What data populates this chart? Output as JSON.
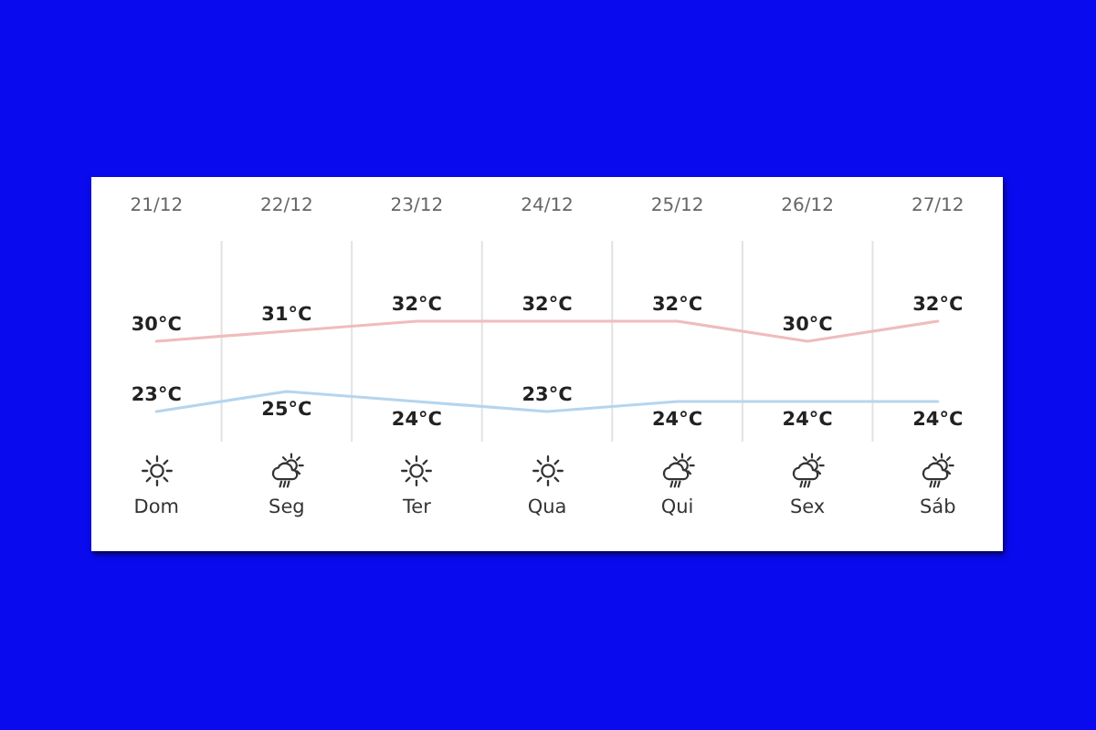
{
  "chart_data": {
    "type": "line",
    "categories": [
      "21/12",
      "22/12",
      "23/12",
      "24/12",
      "25/12",
      "26/12",
      "27/12"
    ],
    "series": [
      {
        "color": "#f0bcbc",
        "values": [
          30,
          31,
          32,
          32,
          32,
          30,
          32
        ],
        "value_labels": [
          "30°C",
          "31°C",
          "32°C",
          "32°C",
          "32°C",
          "30°C",
          "32°C"
        ]
      },
      {
        "color": "#b5d5ee",
        "values": [
          23,
          25,
          24,
          23,
          24,
          24,
          24
        ],
        "value_labels": [
          "23°C",
          "25°C",
          "24°C",
          "23°C",
          "24°C",
          "24°C",
          "24°C"
        ]
      }
    ],
    "annotations": [
      "Dom",
      "Seg",
      "Ter",
      "Qua",
      "Qui",
      "Sex",
      "Sáb"
    ],
    "grid": "x"
  }
}
